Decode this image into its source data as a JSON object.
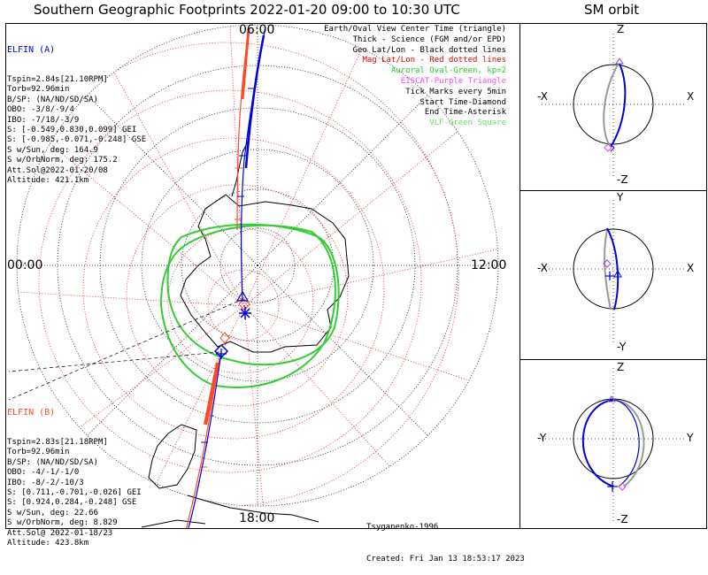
{
  "titles": {
    "main": "Southern Geographic Footprints 2022-01-20 09:00 to 10:30 UTC",
    "orbit": "SM orbit"
  },
  "colors": {
    "elfin_a": "#0000dd",
    "elfin_b": "#ff4a2a",
    "geo_grid": "#000000",
    "mag_grid": "#dd2222",
    "auroral_oval": "#33cc33",
    "eiscat": "#ff44ff",
    "vlf": "#66dd66",
    "orbit_grey": "#999999"
  },
  "elfin_a": {
    "title": "ELFIN (A)",
    "lines": [
      "Tspin=2.84s[21.10RPM]",
      "Torb=92.96min",
      "B/SP: (NA/ND/SD/SA)",
      "OBO: -3/8/-9/4",
      "IBO: -7/18/-3/9",
      "S: [-0.549,0.830,0.099] GEI",
      "S: [-0.985,-0.071,-0.248] GSE",
      "S w/Sun, deg: 164.9",
      "S w/OrbNorm, deg: 175.2",
      "Att.Sol@2022-01-20/08",
      "Altitude: 421.1km"
    ]
  },
  "elfin_b": {
    "title": "ELFIN (B)",
    "lines": [
      "Tspin=2.83s[21.18RPM]",
      "Torb=92.96min",
      "B/SP: (NA/ND/SD/SA)",
      "OBO: -4/-1/-1/0",
      "IBO: -8/-2/-10/3",
      "S: [0.711,-0.701,-0.026] GEI",
      "S: [0.924,0.284,-0.248] GSE",
      "S w/Sun, deg: 22.66",
      "S w/OrbNorm, deg: 8.829",
      "Att.Sol@ 2022-01-18/23",
      "Altitude: 423.8km"
    ]
  },
  "legend": [
    {
      "text": "Earth/Oval View Center Time (triangle)",
      "color": "#000000"
    },
    {
      "text": "Thick - Science (FGM and/or EPD)",
      "color": "#000000"
    },
    {
      "text": "Geo Lat/Lon - Black dotted lines",
      "color": "#000000"
    },
    {
      "text": "Mag Lat/Lon - Red dotted lines",
      "color": "#dd0000"
    },
    {
      "text": "Auroral Oval-Green, kp=2",
      "color": "#22cc22"
    },
    {
      "text": "EISCAT-Purple Triangle",
      "color": "#ff44ff"
    },
    {
      "text": "Tick Marks every 5min",
      "color": "#000000"
    },
    {
      "text": "Start Time-Diamond",
      "color": "#000000"
    },
    {
      "text": "End Time-Asterisk",
      "color": "#000000"
    },
    {
      "text": "VLF-Green Square",
      "color": "#66dd66"
    }
  ],
  "lt_labels": {
    "top": "06:00",
    "left": "00:00",
    "right": "12:00",
    "bottom": "18:00"
  },
  "footer": {
    "model": "Tsyganenko-1996",
    "created": "Created: Fri Jan 13 18:53:17 2023"
  },
  "orbit_panels": [
    {
      "top": "Z",
      "bottom": "-Z",
      "left": "-X",
      "right": "X"
    },
    {
      "top": "Y",
      "bottom": "-Y",
      "left": "-X",
      "right": "X"
    },
    {
      "top": "Z",
      "bottom": "-Z",
      "left": "-Y",
      "right": "Y"
    }
  ]
}
